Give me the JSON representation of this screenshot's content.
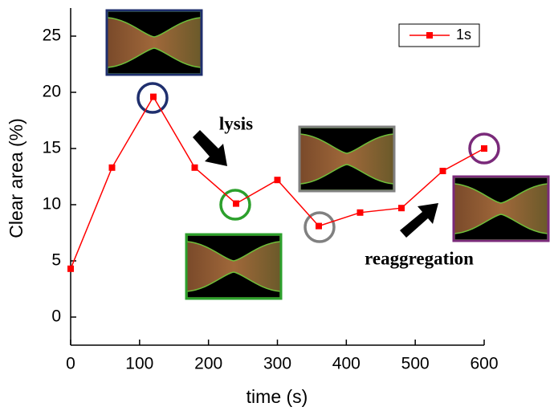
{
  "chart_data": {
    "type": "line",
    "x_label": "time (s)",
    "y_label": "Clear area (%)",
    "x": [
      0,
      60,
      120,
      180,
      240,
      300,
      360,
      420,
      480,
      540,
      600
    ],
    "series": [
      {
        "name": "1s",
        "color": "#ff0000",
        "values": [
          4.3,
          13.3,
          19.6,
          13.3,
          10.1,
          12.2,
          8.1,
          9.3,
          9.7,
          13.0,
          15.0
        ]
      }
    ],
    "xlim": [
      0,
      600
    ],
    "ylim": [
      -2.5,
      27.5
    ],
    "xticks": [
      0,
      100,
      200,
      300,
      400,
      500,
      600
    ],
    "yticks": [
      0,
      5,
      10,
      15,
      20,
      25
    ],
    "legend": "upper right",
    "annotations": [
      "lysis",
      "reaggregation"
    ]
  }
}
